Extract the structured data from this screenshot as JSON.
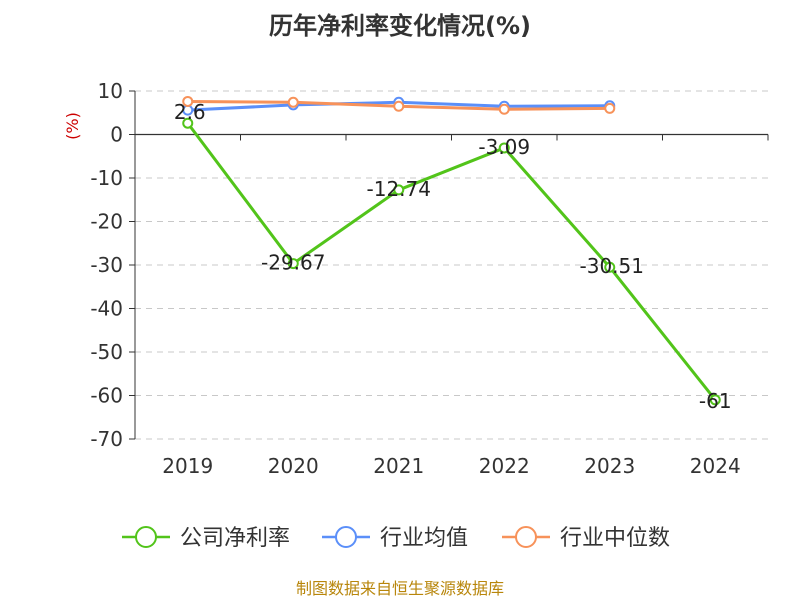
{
  "chart_data": {
    "type": "line",
    "title": "历年净利率变化情况(%)",
    "y_unit": "(%)",
    "categories": [
      "2019",
      "2020",
      "2021",
      "2022",
      "2023",
      "2024"
    ],
    "ylim": [
      -70,
      10
    ],
    "yticks": [
      10,
      0,
      -10,
      -20,
      -30,
      -40,
      -50,
      -60,
      -70
    ],
    "grid": true,
    "legend_position": "bottom",
    "series": [
      {
        "name": "公司净利率",
        "color": "#52c41a",
        "values": [
          2.6,
          -29.67,
          -12.74,
          -3.09,
          -30.51,
          -61
        ],
        "labels": [
          "2.6",
          "-29.67",
          "-12.74",
          "-3.09",
          "-30.51",
          "-61"
        ]
      },
      {
        "name": "行业均值",
        "color": "#5b8ff9",
        "values": [
          5.6,
          6.8,
          7.4,
          6.5,
          6.6,
          null
        ]
      },
      {
        "name": "行业中位数",
        "color": "#f7925a",
        "values": [
          7.6,
          7.4,
          6.5,
          5.8,
          6.0,
          null
        ]
      }
    ]
  },
  "source": "制图数据来自恒生聚源数据库"
}
